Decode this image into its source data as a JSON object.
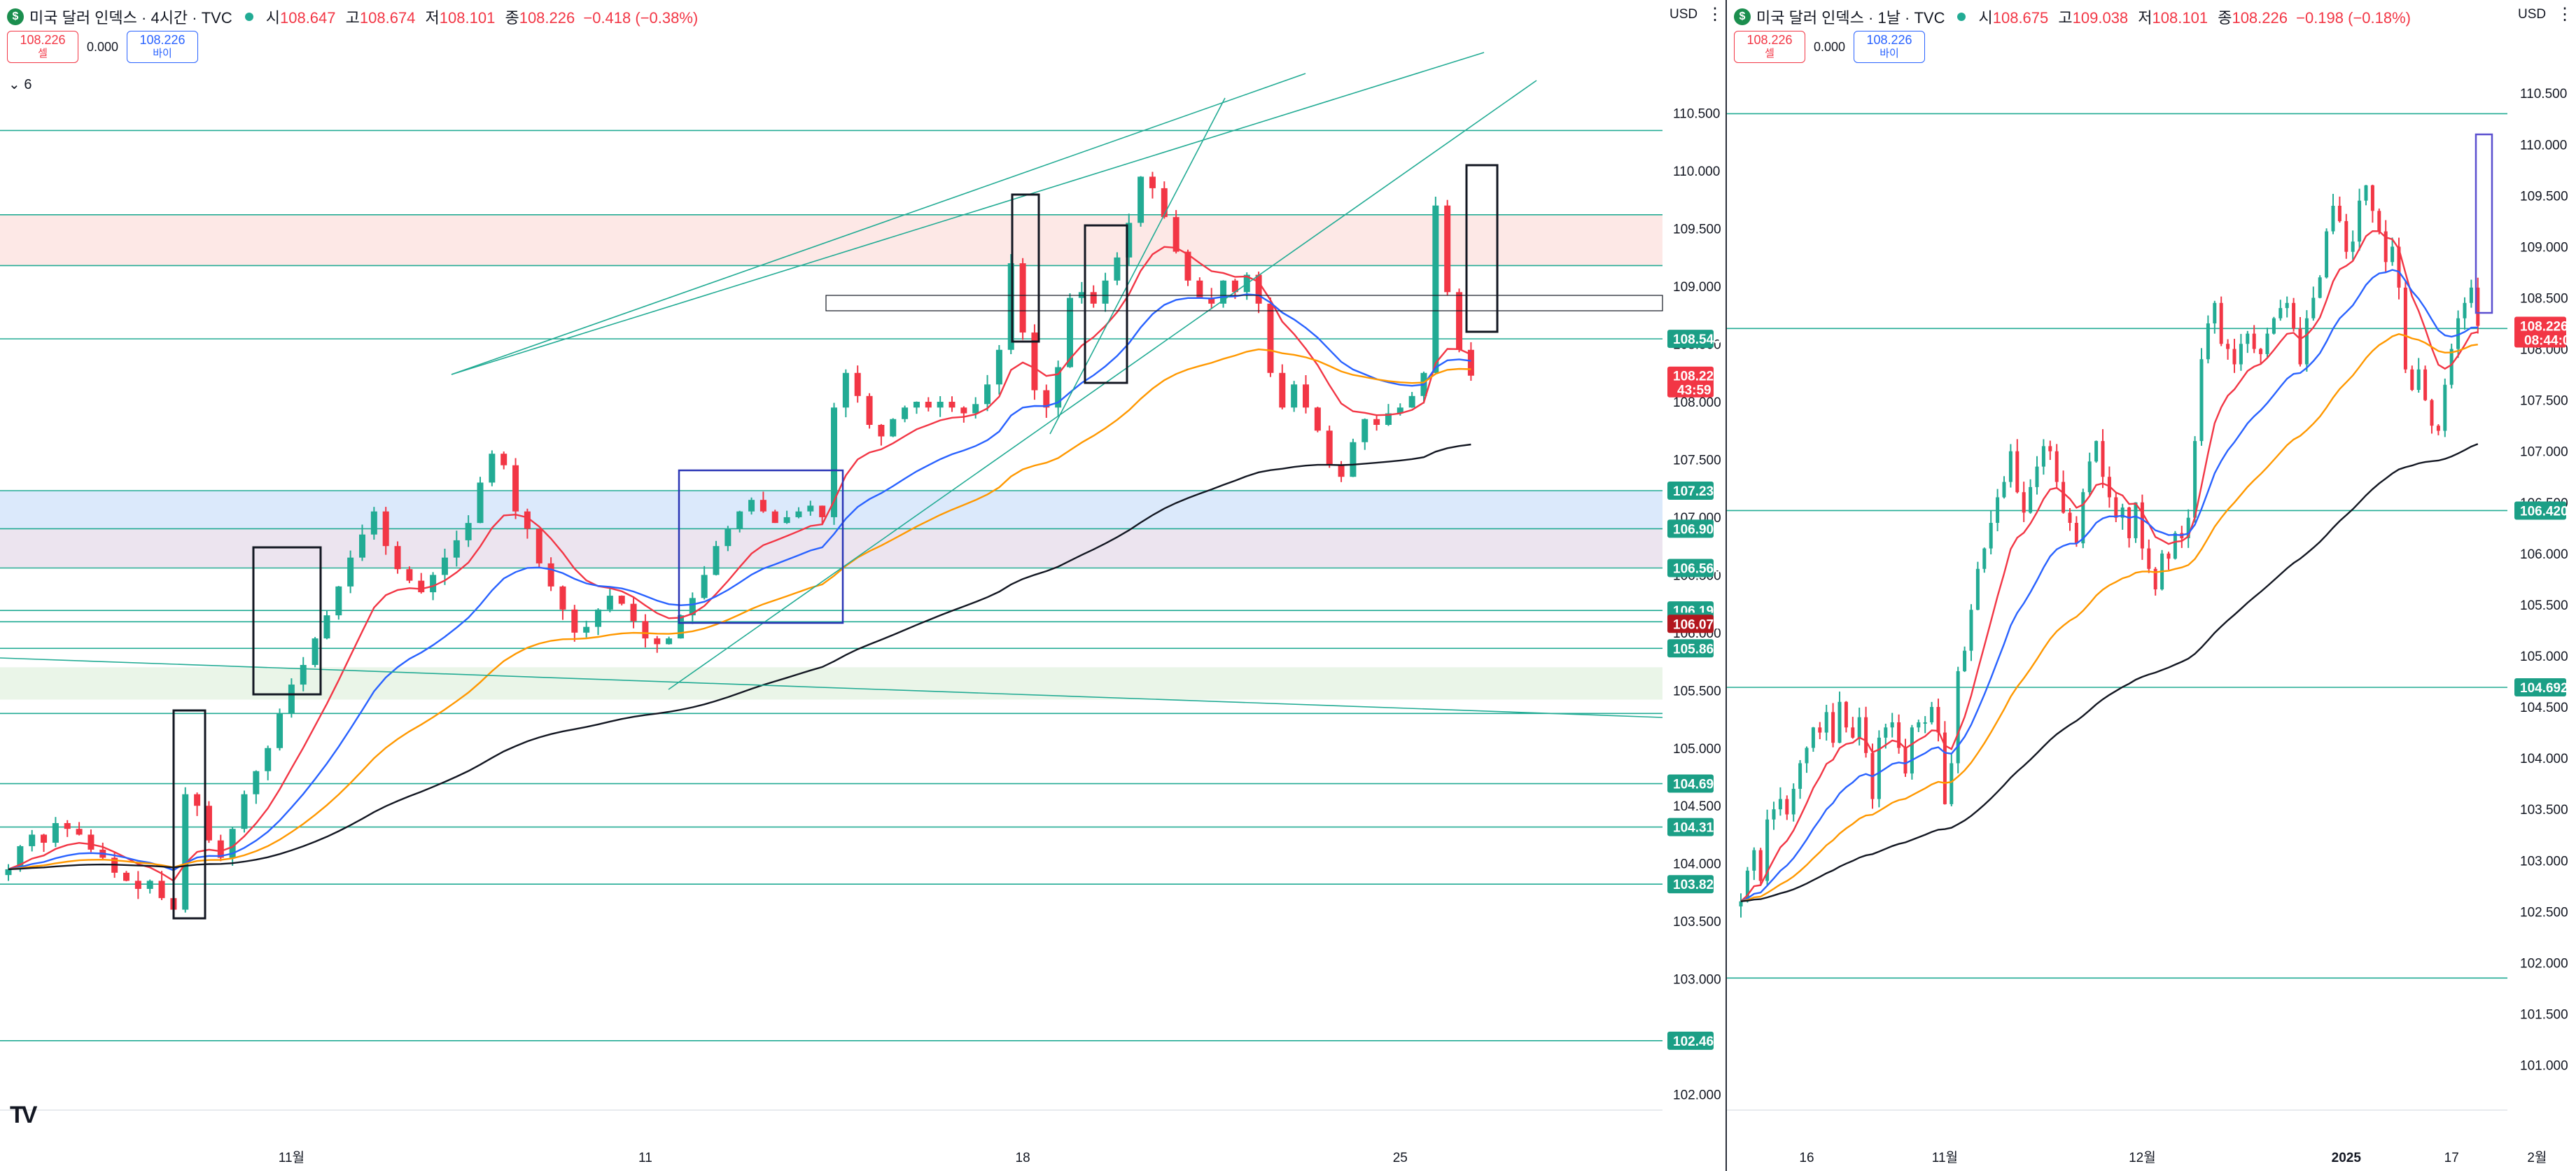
{
  "left": {
    "title": "미국 달러 인덱스 · 4시간 · TVC",
    "ohlc": {
      "o_label": "시",
      "o": "108.647",
      "h_label": "고",
      "h": "108.674",
      "l_label": "저",
      "l": "108.101",
      "c_label": "종",
      "c": "108.226",
      "chg": "−0.418 (−0.38%)"
    },
    "sell": {
      "price": "108.226",
      "label": "셀"
    },
    "spread": "0.000",
    "buy": {
      "price": "108.226",
      "label": "바이"
    },
    "indicator_toggle": "⌄ 6",
    "currency": "USD",
    "price_tags": [
      {
        "label": "108.545",
        "price": 108.545,
        "kind": "green"
      },
      {
        "label": "108.226",
        "sub": "43:59",
        "price": 108.226,
        "kind": "red"
      },
      {
        "label": "107.230",
        "price": 107.23,
        "kind": "green"
      },
      {
        "label": "106.900",
        "price": 106.9,
        "kind": "green"
      },
      {
        "label": "106.560",
        "price": 106.56,
        "kind": "green"
      },
      {
        "label": "106.192",
        "price": 106.192,
        "kind": "green"
      },
      {
        "label": "106.094",
        "price": 106.094,
        "kind": "green"
      },
      {
        "label": "106.076",
        "price": 106.076,
        "kind": "darkred"
      },
      {
        "label": "105.864",
        "price": 105.864,
        "kind": "green"
      },
      {
        "label": "104.692",
        "price": 104.692,
        "kind": "green"
      },
      {
        "label": "104.316",
        "price": 104.316,
        "kind": "green"
      },
      {
        "label": "103.821",
        "price": 103.821,
        "kind": "green"
      },
      {
        "label": "102.465",
        "price": 102.465,
        "kind": "green"
      }
    ]
  },
  "right": {
    "title": "미국 달러 인덱스 · 1날 · TVC",
    "ohlc": {
      "o_label": "시",
      "o": "108.675",
      "h_label": "고",
      "h": "109.038",
      "l_label": "저",
      "l": "108.101",
      "c_label": "종",
      "c": "108.226",
      "chg": "−0.198 (−0.18%)"
    },
    "sell": {
      "price": "108.226",
      "label": "셀"
    },
    "spread": "0.000",
    "buy": {
      "price": "108.226",
      "label": "바이"
    },
    "currency": "USD",
    "price_tags": [
      {
        "label": "108.226",
        "sub": "08:44:00",
        "price": 108.226,
        "kind": "red"
      },
      {
        "label": "106.420",
        "price": 106.42,
        "kind": "green"
      },
      {
        "label": "104.692",
        "price": 104.692,
        "kind": "green"
      }
    ]
  },
  "colors": {
    "up": "#22ab94",
    "down": "#f23645",
    "ema_red": "#f23645",
    "ema_blue": "#2962ff",
    "ema_orange": "#ff9800",
    "ema_black": "#131722",
    "level": "#22ab94"
  },
  "chart_data": [
    {
      "type": "candlestick",
      "timeframe": "4시간",
      "ylim": [
        101.9,
        110.85
      ],
      "y_ticks": [
        110.5,
        110.0,
        109.5,
        109.0,
        108.5,
        108.0,
        107.5,
        107.0,
        106.5,
        106.0,
        105.5,
        105.0,
        104.5,
        104.0,
        103.5,
        103.0,
        102.0
      ],
      "x_ticks": [
        "26",
        "11월",
        "11",
        "18",
        "25",
        "12월",
        "9",
        "16",
        "23",
        "2025",
        "13",
        "20",
        "27",
        "2월",
        "10"
      ],
      "x_tick_index": [
        -12,
        24,
        54,
        86,
        118,
        148,
        180,
        212,
        244,
        276,
        308,
        340,
        372,
        404,
        436
      ],
      "series_close": [
        103.95,
        104.15,
        104.25,
        104.18,
        104.35,
        104.3,
        104.25,
        104.12,
        104.05,
        103.92,
        103.85,
        103.78,
        103.85,
        103.7,
        103.6,
        104.6,
        104.5,
        104.2,
        104.05,
        104.3,
        104.6,
        104.8,
        105.0,
        105.3,
        105.55,
        105.72,
        105.95,
        106.15,
        106.4,
        106.65,
        106.85,
        107.05,
        106.75,
        106.55,
        106.45,
        106.35,
        106.5,
        106.65,
        106.8,
        106.95,
        107.3,
        107.55,
        107.45,
        107.05,
        106.9,
        106.6,
        106.4,
        106.2,
        106.0,
        106.05,
        106.2,
        106.32,
        106.25,
        106.1,
        105.95,
        105.9,
        105.95,
        106.15,
        106.3,
        106.5,
        106.75,
        106.9,
        107.05,
        107.15,
        107.05,
        106.95,
        107.0,
        107.05,
        107.1,
        107.0,
        107.95,
        108.25,
        108.05,
        107.8,
        107.7,
        107.85,
        107.95,
        108.0,
        107.95,
        108.0,
        107.95,
        107.9,
        107.98,
        108.15,
        108.45,
        109.2,
        108.6,
        108.1,
        107.95,
        108.3,
        108.9,
        108.95,
        108.85,
        109.05,
        109.25,
        109.55,
        109.95,
        109.85,
        109.6,
        109.3,
        109.05,
        108.9,
        108.85,
        109.05,
        108.95,
        109.1,
        108.85,
        108.25,
        107.95,
        108.15,
        107.95,
        107.75,
        107.45,
        107.35,
        107.65,
        107.85,
        107.8,
        107.9,
        107.95,
        108.05,
        108.25,
        109.7,
        108.95,
        108.45,
        108.226
      ],
      "ema_note": "red / blue / orange / black moving averages",
      "horizontal_levels": [
        110.35,
        109.62,
        109.18,
        108.545,
        107.23,
        106.9,
        106.56,
        106.192,
        106.094,
        105.864,
        105.3,
        104.692,
        104.316,
        103.821,
        102.465
      ]
    },
    {
      "type": "candlestick",
      "timeframe": "1날",
      "ylim": [
        100.6,
        110.7
      ],
      "y_ticks": [
        110.5,
        110.0,
        109.5,
        109.0,
        108.5,
        108.0,
        107.5,
        107.0,
        106.5,
        106.0,
        105.5,
        105.0,
        104.5,
        104.0,
        103.5,
        103.0,
        102.5,
        102.0,
        101.5,
        101.0
      ],
      "x_ticks": [
        "16",
        "11월",
        "12월",
        "2025",
        "17",
        "2월"
      ],
      "x_tick_index": [
        10,
        31,
        61,
        92,
        108,
        121
      ],
      "series_close": [
        102.6,
        102.9,
        103.1,
        102.8,
        103.4,
        103.5,
        103.6,
        103.45,
        103.7,
        103.95,
        104.1,
        104.3,
        104.25,
        104.45,
        104.15,
        104.55,
        104.3,
        104.2,
        104.4,
        104.05,
        103.6,
        104.2,
        104.3,
        104.35,
        104.1,
        103.85,
        104.3,
        104.35,
        104.35,
        104.5,
        104.25,
        103.55,
        103.95,
        104.85,
        105.05,
        105.45,
        105.85,
        106.05,
        106.3,
        106.55,
        106.7,
        107.0,
        106.6,
        106.4,
        106.65,
        106.85,
        107.05,
        107.0,
        106.7,
        106.4,
        106.3,
        106.1,
        106.6,
        106.9,
        107.1,
        106.75,
        106.55,
        106.35,
        106.45,
        106.15,
        106.5,
        106.05,
        105.85,
        105.65,
        106.0,
        105.95,
        106.2,
        106.15,
        106.35,
        107.1,
        107.9,
        108.25,
        108.45,
        108.05,
        108.0,
        107.85,
        108.05,
        108.15,
        108.0,
        107.95,
        108.15,
        108.3,
        108.4,
        108.45,
        108.2,
        107.85,
        108.3,
        108.5,
        108.7,
        109.15,
        109.4,
        109.25,
        108.95,
        109.05,
        109.45,
        109.6,
        109.35,
        109.15,
        108.85,
        109.0,
        108.6,
        107.8,
        107.6,
        107.8,
        107.5,
        107.25,
        107.2,
        107.65,
        108.0,
        108.3,
        108.45,
        108.6,
        108.226
      ],
      "ema_note": "red / blue / orange / black moving averages",
      "horizontal_levels": [
        110.3,
        108.2,
        106.42,
        104.692,
        101.85
      ]
    }
  ]
}
